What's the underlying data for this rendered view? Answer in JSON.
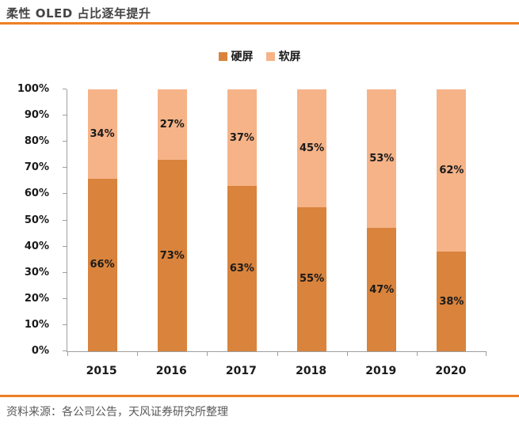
{
  "header": {
    "title": "柔性 OLED 占比逐年提升"
  },
  "footer": {
    "source": "资料来源：各公司公告，天风证券研究所整理"
  },
  "colors": {
    "accent_line": "#EE7F23",
    "axis": "#9E9E9E",
    "hard_series": "#D9833C",
    "soft_series": "#F6B388",
    "label_text": "#1A1A1A",
    "footer_text": "#595959"
  },
  "chart_data": {
    "type": "bar",
    "stacked": true,
    "title": "柔性 OLED 占比逐年提升",
    "categories": [
      "2015",
      "2016",
      "2017",
      "2018",
      "2019",
      "2020"
    ],
    "series": [
      {
        "name": "硬屏",
        "color": "#D9833C",
        "values": [
          66,
          73,
          63,
          55,
          47,
          38
        ]
      },
      {
        "name": "软屏",
        "color": "#F6B388",
        "values": [
          34,
          27,
          37,
          45,
          53,
          62
        ]
      }
    ],
    "data_labels": {
      "硬屏": [
        "66%",
        "73%",
        "63%",
        "55%",
        "47%",
        "38%"
      ],
      "软屏": [
        "34%",
        "27%",
        "37%",
        "45%",
        "53%",
        "62%"
      ]
    },
    "xlabel": "",
    "ylabel": "",
    "ylim": [
      0,
      100
    ],
    "y_ticks": [
      "0%",
      "10%",
      "20%",
      "30%",
      "40%",
      "50%",
      "60%",
      "70%",
      "80%",
      "90%",
      "100%"
    ],
    "grid": false,
    "legend_position": "top"
  }
}
